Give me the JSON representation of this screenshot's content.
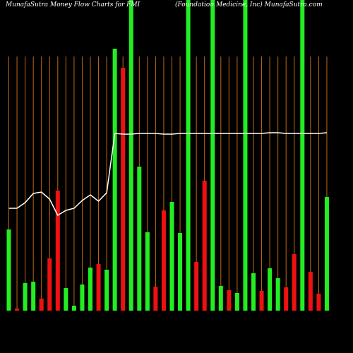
{
  "chart_data": {
    "type": "bar",
    "title": "MunafaSutra  Money Flow  Charts for FMI",
    "subtitle": "(Foundation  Medicine,  Inc)  MunafaSutra.com",
    "ylim": [
      0,
      440
    ],
    "guide_color": "#c06a10",
    "bars": {
      "values": [
        115,
        3,
        39,
        41,
        17,
        74,
        170,
        32,
        7,
        37,
        61,
        66,
        58,
        371,
        344,
        440,
        204,
        111,
        34,
        142,
        154,
        110,
        440,
        69,
        184,
        440,
        35,
        29,
        25,
        440,
        53,
        28,
        60,
        46,
        33,
        80,
        440,
        55,
        24,
        161
      ],
      "colors": [
        "#22ee22",
        "#ee1111",
        "#22ee22",
        "#22ee22",
        "#ee1111",
        "#ee1111",
        "#ee1111",
        "#22ee22",
        "#22ee22",
        "#22ee22",
        "#22ee22",
        "#ee1111",
        "#22ee22",
        "#22ee22",
        "#ee1111",
        "#22ee22",
        "#22ee22",
        "#22ee22",
        "#ee1111",
        "#ee1111",
        "#22ee22",
        "#22ee22",
        "#22ee22",
        "#ee1111",
        "#ee1111",
        "#22ee22",
        "#22ee22",
        "#ee1111",
        "#22ee22",
        "#22ee22",
        "#22ee22",
        "#ee1111",
        "#22ee22",
        "#22ee22",
        "#ee1111",
        "#ee1111",
        "#22ee22",
        "#ee1111",
        "#ee1111",
        "#22ee22"
      ]
    },
    "line": {
      "color": "#ffffff",
      "values": [
        145,
        145,
        153,
        166,
        168,
        158,
        135,
        142,
        145,
        156,
        164,
        155,
        167,
        251,
        250,
        250,
        251,
        251,
        251,
        250,
        250,
        251,
        251,
        251,
        251,
        251,
        251,
        251,
        251,
        251,
        251,
        251,
        252,
        252,
        251,
        251,
        251,
        251,
        251,
        252
      ]
    }
  }
}
